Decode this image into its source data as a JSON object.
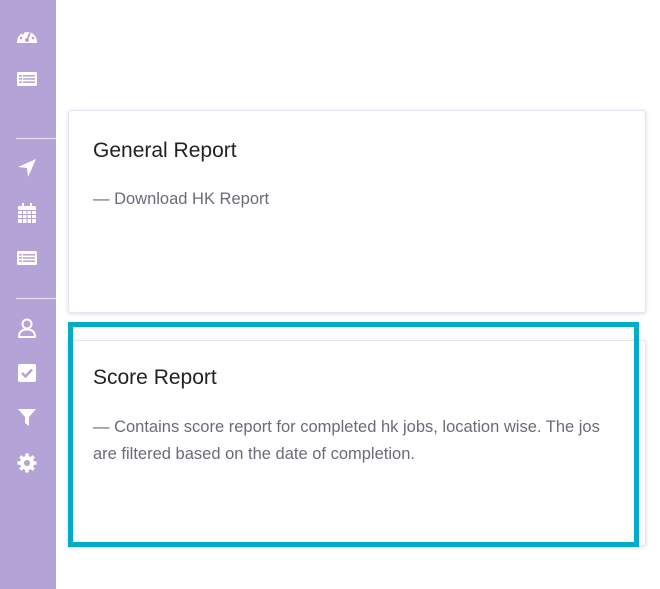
{
  "sidebar": {
    "background": "#b3a3d6",
    "items": [
      {
        "icon": "dashboard-gauge-icon"
      },
      {
        "icon": "list-table-icon"
      },
      {
        "icon": "navigation-arrow-icon"
      },
      {
        "icon": "calendar-icon"
      },
      {
        "icon": "list-table-icon"
      },
      {
        "icon": "user-icon"
      },
      {
        "icon": "checkbox-icon"
      },
      {
        "icon": "filter-icon"
      },
      {
        "icon": "gear-icon"
      }
    ]
  },
  "reports": [
    {
      "title": "General Report",
      "description": "—  Download HK Report"
    },
    {
      "title": "Score Report",
      "description": "—  Contains score report for completed hk jobs, location wise. The jos are filtered based on the date of completion."
    }
  ],
  "highlight_color": "#00acc8"
}
